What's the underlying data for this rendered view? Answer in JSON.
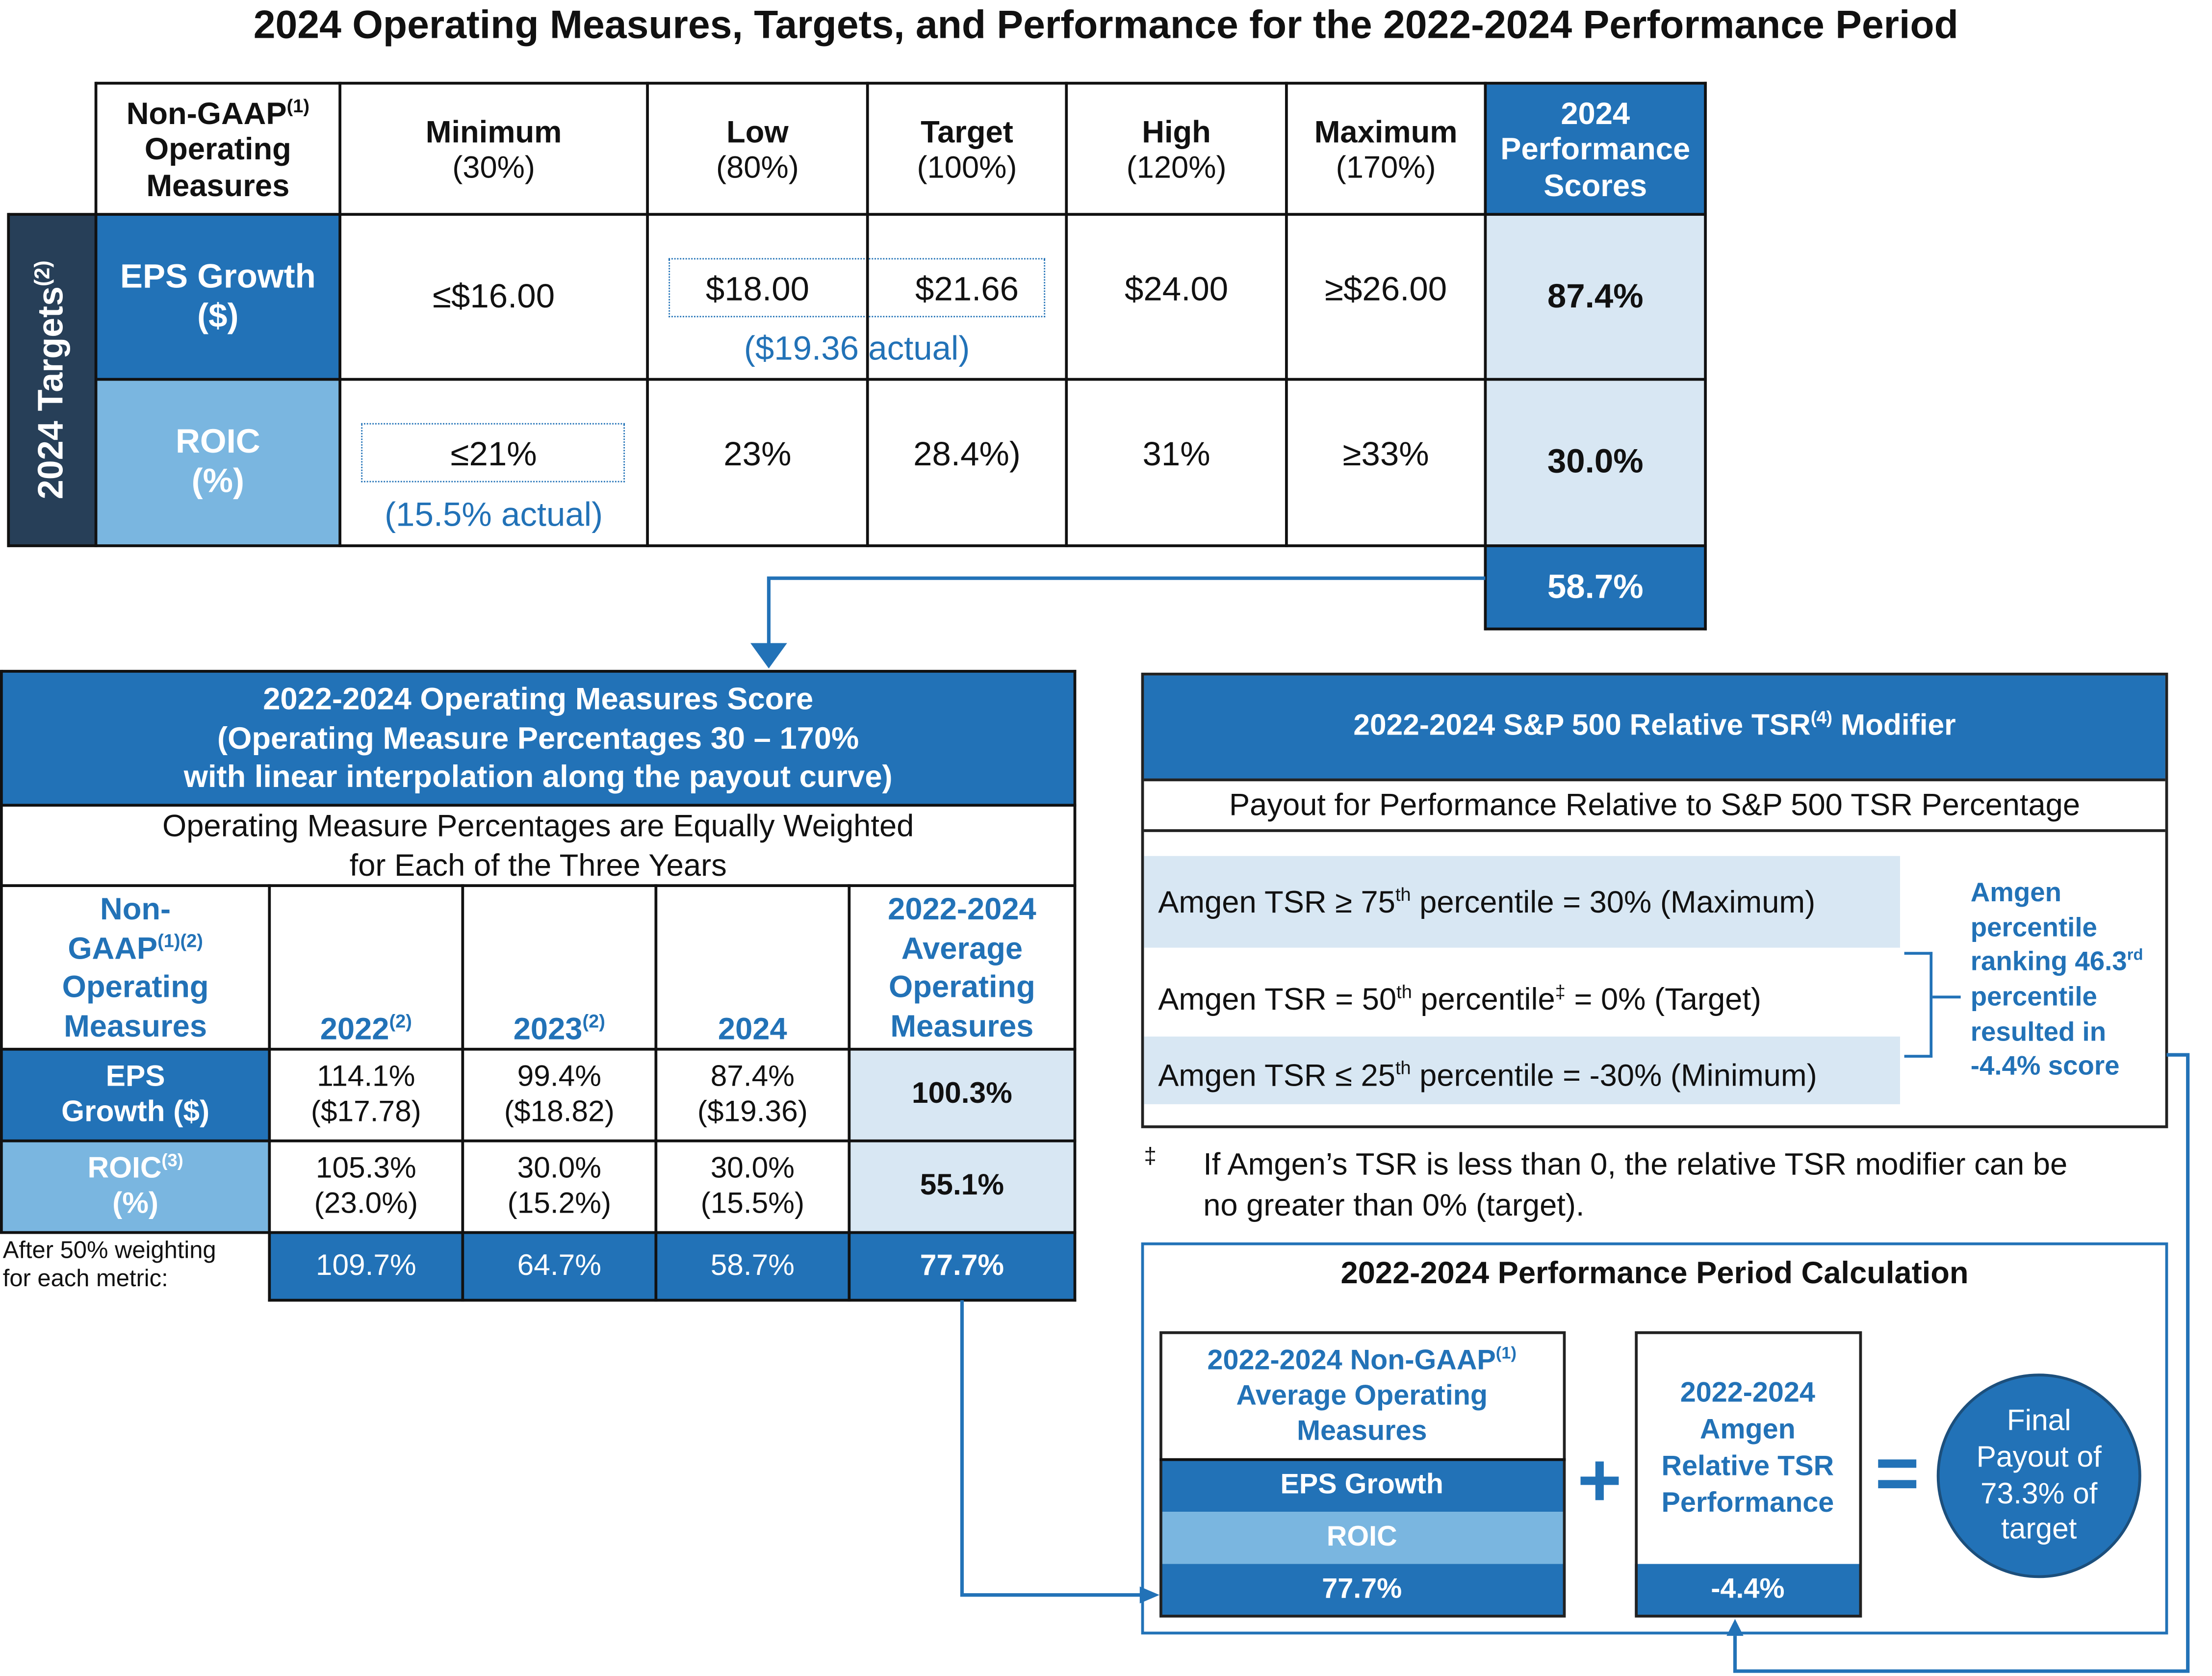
{
  "title": "2024 Operating Measures, Targets, and Performance for the 2022-2024 Performance Period",
  "targets_table": {
    "side_label": "2024 Targets",
    "side_label_sup": "(2)",
    "header": {
      "measures_line1": "Non-GAAP",
      "measures_sup": "(1)",
      "measures_line2": "Operating",
      "measures_line3": "Measures",
      "minimum": "Minimum",
      "minimum_pct": "(30%)",
      "low": "Low",
      "low_pct": "(80%)",
      "target": "Target",
      "target_pct": "(100%)",
      "high": "High",
      "high_pct": "(120%)",
      "maximum": "Maximum",
      "maximum_pct": "(170%)",
      "scores_line1": "2024",
      "scores_line2": "Performance",
      "scores_line3": "Scores"
    },
    "rows": [
      {
        "label_line1": "EPS Growth",
        "label_line2": "($)",
        "minimum": "≤$16.00",
        "low": "$18.00",
        "target": "$21.66",
        "high": "$24.00",
        "maximum": "≥$26.00",
        "score": "87.4%",
        "actual": "($19.36 actual)"
      },
      {
        "label_line1": "ROIC",
        "label_line2": "(%)",
        "minimum": "≤21%",
        "low": "23%",
        "target": "28.4%)",
        "high": "31%",
        "maximum": "≥33%",
        "score": "30.0%",
        "actual": "(15.5% actual)"
      }
    ],
    "total_score": "58.7%"
  },
  "operating_score": {
    "title_line1": "2022-2024 Operating Measures Score",
    "title_line2": "(Operating Measure Percentages 30 – 170%",
    "title_line3": "with linear interpolation along the payout curve)",
    "subtitle_line1": "Operating Measure Percentages are Equally Weighted",
    "subtitle_line2": "for Each of the Three Years",
    "col_measures_1": "Non-",
    "col_measures_2": "GAAP",
    "col_measures_2_sup": "(1)(2)",
    "col_measures_3": "Operating",
    "col_measures_4": "Measures",
    "col_2022": "2022",
    "col_2022_sup": "(2)",
    "col_2023": "2023",
    "col_2023_sup": "(2)",
    "col_2024": "2024",
    "col_avg_1": "2022-2024",
    "col_avg_2": "Average",
    "col_avg_3": "Operating",
    "col_avg_4": "Measures",
    "rows": [
      {
        "label_line1": "EPS",
        "label_line2": "Growth ($)",
        "label_sup": "",
        "y2022": "114.1%",
        "y2022_sub": "($17.78)",
        "y2023": "99.4%",
        "y2023_sub": "($18.82)",
        "y2024": "87.4%",
        "y2024_sub": "($19.36)",
        "avg": "100.3%"
      },
      {
        "label_line1": "ROIC",
        "label_line2": "(%)",
        "label_sup": "(3)",
        "y2022": "105.3%",
        "y2022_sub": "(23.0%)",
        "y2023": "30.0%",
        "y2023_sub": "(15.2%)",
        "y2024": "30.0%",
        "y2024_sub": "(15.5%)",
        "avg": "55.1%"
      }
    ],
    "weighting_label_1": "After 50% weighting",
    "weighting_label_2": "for each metric:",
    "weighted": {
      "y2022": "109.7%",
      "y2023": "64.7%",
      "y2024": "58.7%",
      "avg": "77.7%"
    }
  },
  "tsr_modifier": {
    "title": "2022-2024 S&P 500 Relative TSR",
    "title_sup": "(4)",
    "title_end": " Modifier",
    "subtitle": "Payout for Performance Relative to S&P 500 TSR Percentage",
    "rows": [
      {
        "pre": "Amgen TSR ≥ 75",
        "sup": "th",
        "mid": " percentile = 30%  (Maximum)",
        "mark": "",
        "post": ""
      },
      {
        "pre": "Amgen TSR = 50",
        "sup": "th",
        "mid": " percentile",
        "mark": "‡",
        "post": " = 0% (Target)"
      },
      {
        "pre": "Amgen TSR ≤ 25",
        "sup": "th",
        "mid": " percentile = -30% (Minimum)",
        "mark": "",
        "post": ""
      }
    ],
    "callout_1": "Amgen",
    "callout_2": "percentile",
    "callout_3": "ranking 46.3",
    "callout_3_sup": "rd",
    "callout_4": "percentile",
    "callout_5": "resulted in",
    "callout_6": "-4.4% score",
    "footnote_mark": "‡",
    "footnote_line1": "If Amgen’s TSR is less than 0, the relative TSR modifier can be",
    "footnote_line2": "no greater than 0% (target)."
  },
  "calculation": {
    "title": "2022-2024 Performance Period Calculation",
    "box1_line1": "2022-2024 Non-GAAP",
    "box1_sup": "(1)",
    "box1_line2": "Average Operating",
    "box1_line3": "Measures",
    "box1_eps": "EPS Growth",
    "box1_roic": "ROIC",
    "box1_value": "77.7%",
    "plus": "+",
    "box2_line1": "2022-2024",
    "box2_line2": "Amgen",
    "box2_line3": "Relative TSR",
    "box2_line4": "Performance",
    "box2_value": "-4.4%",
    "equals": "=",
    "final_1": "Final",
    "final_2": "Payout of",
    "final_3": "73.3% of",
    "final_4": "target"
  },
  "colors": {
    "dark_blue": "#2272b7",
    "light_blue": "#7ab6e0",
    "pale_blue": "#d8e7f3",
    "navy": "#273f58"
  }
}
